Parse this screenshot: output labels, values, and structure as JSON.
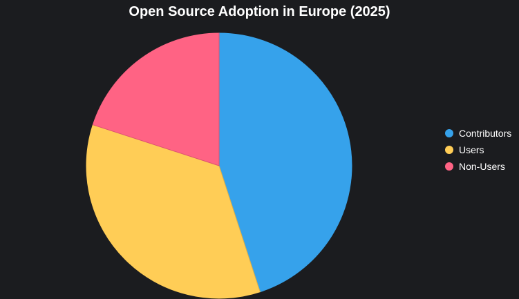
{
  "chart_data": {
    "type": "pie",
    "title": "Open Source Adoption in Europe (2025)",
    "labels": [
      "Contributors",
      "Users",
      "Non-Users"
    ],
    "values": [
      45,
      35,
      20
    ],
    "colors": [
      "#36a2eb",
      "#ffcd56",
      "#ff6384"
    ],
    "start_angle_deg": 0,
    "direction": "clockwise",
    "legend_position": "right"
  },
  "colors": {
    "background": "#1b1c1f",
    "text": "#ffffff"
  }
}
